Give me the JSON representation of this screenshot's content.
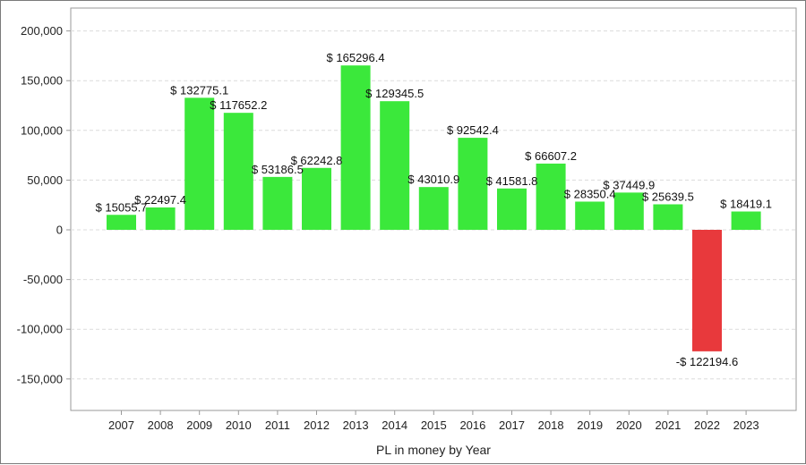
{
  "chart_data": {
    "type": "bar",
    "title": "",
    "xlabel": "PL in money by Year",
    "ylabel": "",
    "categories": [
      "2007",
      "2008",
      "2009",
      "2010",
      "2011",
      "2012",
      "2013",
      "2014",
      "2015",
      "2016",
      "2017",
      "2018",
      "2019",
      "2020",
      "2021",
      "2022",
      "2023"
    ],
    "values": [
      15055.7,
      22497.4,
      132775.1,
      117652.2,
      53186.5,
      62242.8,
      165296.4,
      129345.5,
      43010.9,
      92542.4,
      41581.8,
      66607.2,
      28350.4,
      37449.9,
      25639.5,
      -122194.6,
      18419.1
    ],
    "data_labels": [
      "$ 15055.7",
      "$ 22497.4",
      "$ 132775.1",
      "$ 117652.2",
      "$ 53186.5",
      "$ 62242.8",
      "$ 165296.4",
      "$ 129345.5",
      "$ 43010.9",
      "$ 92542.4",
      "$ 41581.8",
      "$ 66607.2",
      "$ 28350.4",
      "$ 37449.9",
      "$ 25639.5",
      "-$ 122194.6",
      "$ 18419.1"
    ],
    "ylim": [
      -180000,
      220000
    ],
    "yticks": [
      200000,
      150000,
      100000,
      50000,
      0,
      -50000,
      -100000,
      -150000
    ],
    "ytick_labels": [
      "200,000",
      "150,000",
      "100,000",
      "50,000",
      "0",
      "-50,000",
      "-100,000",
      "-150,000"
    ],
    "grid": true,
    "legend": "none",
    "colors": {
      "positive": "#3be83b",
      "negative": "#e8393c",
      "grid": "#dcdcdc",
      "axis": "#9a9a9a"
    }
  }
}
